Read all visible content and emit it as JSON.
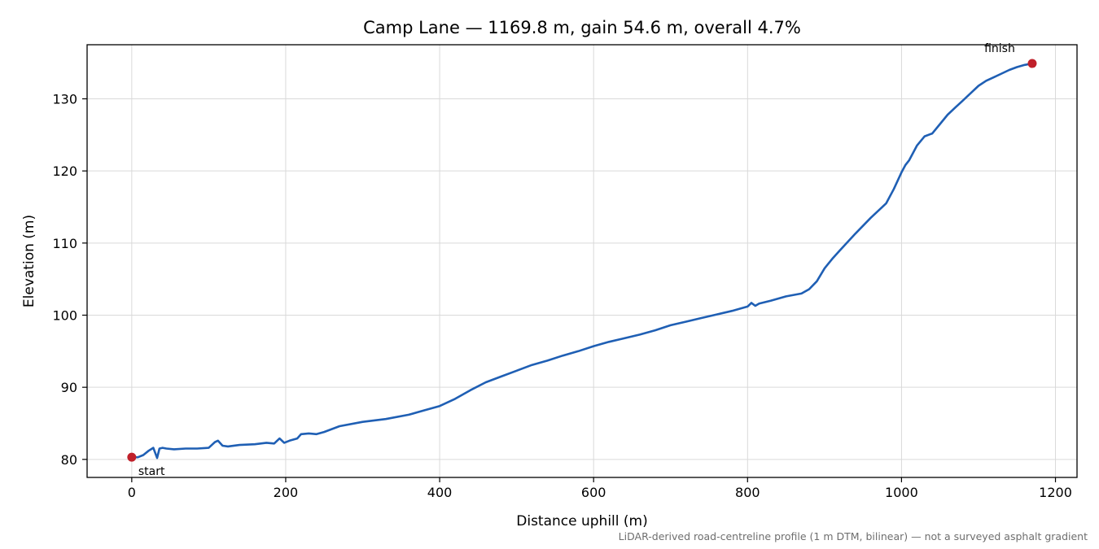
{
  "chart_data": {
    "type": "line",
    "title": "Camp Lane — 1169.8 m, gain 54.6 m, overall 4.7%",
    "xlabel": "Distance uphill (m)",
    "ylabel": "Elevation (m)",
    "xlim": [
      -58,
      1228
    ],
    "ylim": [
      77.5,
      137.5
    ],
    "xticks": [
      0,
      200,
      400,
      600,
      800,
      1000,
      1200
    ],
    "yticks": [
      80,
      90,
      100,
      110,
      120,
      130
    ],
    "grid": true,
    "line_color": "#1f5fb4",
    "marker_color": "#c0202a",
    "footnote": "LiDAR-derived road-centreline profile (1 m DTM, bilinear) — not a surveyed asphalt gradient",
    "series": [
      {
        "x": [
          0,
          8,
          15,
          22,
          28,
          33,
          36,
          40,
          45,
          55,
          70,
          85,
          100,
          108,
          112,
          118,
          125,
          140,
          160,
          175,
          185,
          192,
          198,
          205,
          215,
          220,
          230,
          240,
          250,
          270,
          300,
          330,
          360,
          380,
          400,
          420,
          440,
          460,
          480,
          500,
          520,
          540,
          560,
          580,
          600,
          620,
          640,
          660,
          680,
          700,
          720,
          740,
          760,
          780,
          800,
          805,
          810,
          815,
          830,
          850,
          870,
          880,
          890,
          900,
          910,
          920,
          940,
          960,
          980,
          990,
          1000,
          1005,
          1010,
          1020,
          1030,
          1040,
          1050,
          1060,
          1070,
          1080,
          1090,
          1100,
          1110,
          1120,
          1130,
          1140,
          1150,
          1160,
          1169.8
        ],
        "y": [
          80.3,
          80.3,
          80.6,
          81.2,
          81.6,
          80.2,
          81.5,
          81.6,
          81.5,
          81.4,
          81.5,
          81.5,
          81.6,
          82.4,
          82.6,
          81.9,
          81.8,
          82.0,
          82.1,
          82.3,
          82.2,
          82.9,
          82.3,
          82.6,
          82.9,
          83.5,
          83.6,
          83.5,
          83.8,
          84.6,
          85.2,
          85.6,
          86.2,
          86.8,
          87.4,
          88.4,
          89.6,
          90.7,
          91.5,
          92.3,
          93.1,
          93.7,
          94.4,
          95.0,
          95.7,
          96.3,
          96.8,
          97.3,
          97.9,
          98.6,
          99.1,
          99.6,
          100.1,
          100.6,
          101.2,
          101.7,
          101.3,
          101.6,
          102.0,
          102.6,
          103.0,
          103.6,
          104.7,
          106.5,
          107.8,
          109.0,
          111.3,
          113.5,
          115.5,
          117.5,
          119.8,
          120.8,
          121.5,
          123.5,
          124.8,
          125.2,
          126.5,
          127.8,
          128.8,
          129.8,
          130.8,
          131.8,
          132.5,
          133.0,
          133.5,
          134.0,
          134.4,
          134.7,
          134.9
        ]
      }
    ],
    "annotations": [
      {
        "text": "start",
        "x": 0,
        "y": 80.3
      },
      {
        "text": "finish",
        "x": 1169.8,
        "y": 134.9
      }
    ]
  }
}
